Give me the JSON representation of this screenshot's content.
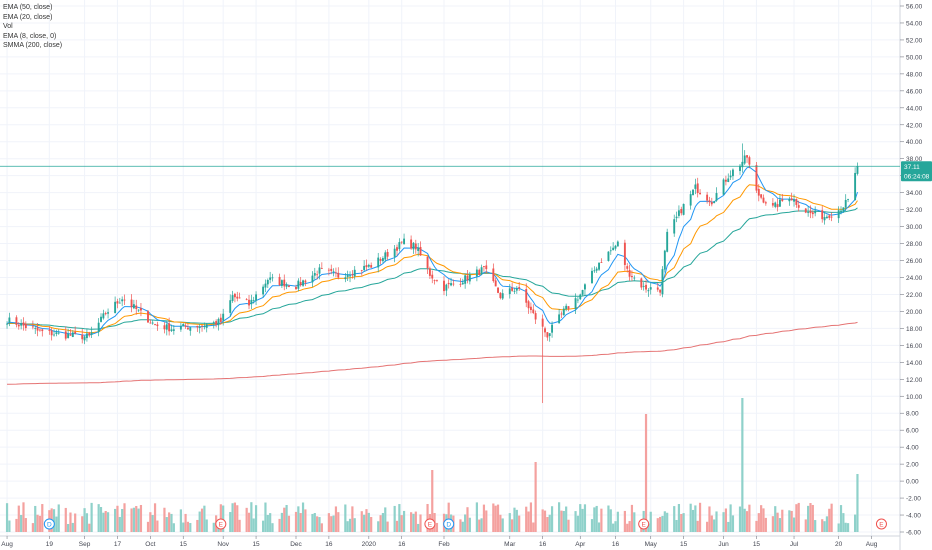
{
  "legend": {
    "items": [
      "EMA (50, close)",
      "EMA (20, close)",
      "Vol",
      "EMA (8, close, 0)",
      "SMMA (200, close)"
    ]
  },
  "price_tag": {
    "value": "37.11",
    "countdown": "06:24:08"
  },
  "colors": {
    "up": "#26a69a",
    "down": "#ef5350",
    "vol_up": "#8fd1ca",
    "vol_down": "#f4a19f",
    "ema8": "#2196f3",
    "ema20": "#ff9800",
    "ema50": "#26a69a",
    "smma200": "#e57373",
    "grid": "#f0f3fa",
    "tag": "#26a69a"
  },
  "chart_data": {
    "type": "candlestick",
    "title": "",
    "x_tick_labels": [
      "Aug",
      "19",
      "Sep",
      "17",
      "Oct",
      "15",
      "Nov",
      "15",
      "Dec",
      "16",
      "2020",
      "16",
      "Feb",
      "Mar",
      "16",
      "Apr",
      "16",
      "May",
      "15",
      "Jun",
      "15",
      "Jul",
      "20",
      "Aug"
    ],
    "y_tick_labels": [
      "56.00",
      "54.00",
      "52.00",
      "50.00",
      "48.00",
      "46.00",
      "44.00",
      "42.00",
      "40.00",
      "38.00",
      "36.00",
      "34.00",
      "32.00",
      "30.00",
      "28.00",
      "26.00",
      "24.00",
      "22.00",
      "20.00",
      "18.00",
      "16.00",
      "14.00",
      "12.00",
      "10.00",
      "8.00",
      "6.00",
      "4.00",
      "2.00",
      "0.00",
      "-2.00",
      "-4.00",
      "-6.00"
    ],
    "ylim": [
      -6,
      56
    ],
    "last_price": 37.11,
    "event_markers": [
      {
        "label": "D",
        "date": "Aug 19"
      },
      {
        "label": "E",
        "date": "Oct 31"
      },
      {
        "label": "E",
        "date": "Jan 28"
      },
      {
        "label": "D",
        "date": "Feb 5"
      },
      {
        "label": "E",
        "date": "Apr 28"
      },
      {
        "label": "E",
        "date": "Jul 28"
      }
    ],
    "close_anchors": [
      [
        "2019-08-01",
        19.0
      ],
      [
        "2019-08-15",
        17.6
      ],
      [
        "2019-08-26",
        17.2
      ],
      [
        "2019-09-05",
        17.0
      ],
      [
        "2019-09-12",
        19.8
      ],
      [
        "2019-09-19",
        21.6
      ],
      [
        "2019-09-26",
        20.0
      ],
      [
        "2019-10-03",
        18.4
      ],
      [
        "2019-10-10",
        18.0
      ],
      [
        "2019-10-24",
        18.4
      ],
      [
        "2019-10-31",
        18.8
      ],
      [
        "2019-11-05",
        21.8
      ],
      [
        "2019-11-12",
        20.8
      ],
      [
        "2019-11-20",
        23.8
      ],
      [
        "2019-12-02",
        23.0
      ],
      [
        "2019-12-12",
        24.8
      ],
      [
        "2019-12-20",
        24.2
      ],
      [
        "2020-01-03",
        25.4
      ],
      [
        "2020-01-10",
        26.8
      ],
      [
        "2020-01-17",
        28.2
      ],
      [
        "2020-01-22",
        27.6
      ],
      [
        "2020-01-28",
        24.4
      ],
      [
        "2020-02-03",
        22.8
      ],
      [
        "2020-02-10",
        23.6
      ],
      [
        "2020-02-20",
        25.0
      ],
      [
        "2020-02-27",
        21.8
      ],
      [
        "2020-03-05",
        22.8
      ],
      [
        "2020-03-12",
        19.6
      ],
      [
        "2020-03-18",
        17.2
      ],
      [
        "2020-03-25",
        20.0
      ],
      [
        "2020-04-01",
        22.0
      ],
      [
        "2020-04-09",
        25.8
      ],
      [
        "2020-04-17",
        28.0
      ],
      [
        "2020-04-21",
        24.8
      ],
      [
        "2020-04-28",
        22.8
      ],
      [
        "2020-05-05",
        22.6
      ],
      [
        "2020-05-08",
        29.0
      ],
      [
        "2020-05-14",
        32.0
      ],
      [
        "2020-05-20",
        34.6
      ],
      [
        "2020-05-27",
        33.0
      ],
      [
        "2020-06-03",
        36.0
      ],
      [
        "2020-06-08",
        37.4
      ],
      [
        "2020-06-11",
        38.2
      ],
      [
        "2020-06-15",
        34.0
      ],
      [
        "2020-06-22",
        32.2
      ],
      [
        "2020-06-29",
        33.6
      ],
      [
        "2020-07-07",
        31.6
      ],
      [
        "2020-07-14",
        31.2
      ],
      [
        "2020-07-20",
        32.0
      ],
      [
        "2020-07-24",
        33.0
      ],
      [
        "2020-07-28",
        37.11
      ]
    ]
  }
}
